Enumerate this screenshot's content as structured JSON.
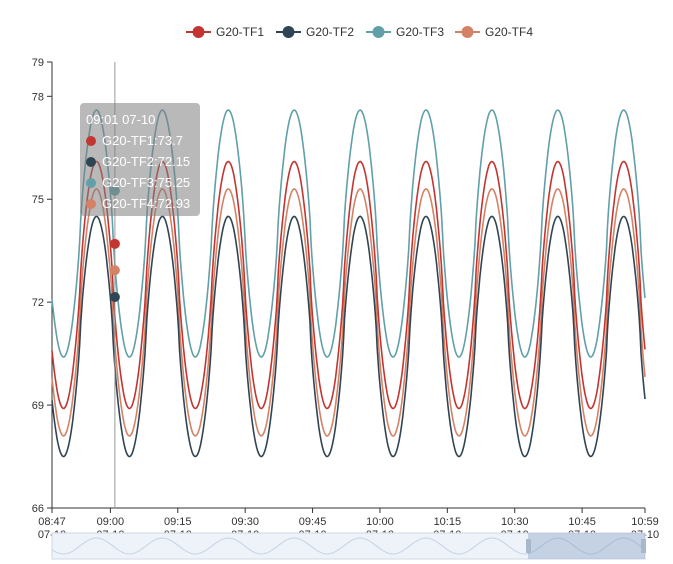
{
  "chart_data": {
    "type": "line",
    "x_start": "08:47",
    "x_end": "10:59",
    "x_ticks": [
      {
        "time": "08:47",
        "date": "07-10"
      },
      {
        "time": "09:00",
        "date": "07-10"
      },
      {
        "time": "09:15",
        "date": "07-10"
      },
      {
        "time": "09:30",
        "date": "07-10"
      },
      {
        "time": "09:45",
        "date": "07-10"
      },
      {
        "time": "10:00",
        "date": "07-10"
      },
      {
        "time": "10:15",
        "date": "07-10"
      },
      {
        "time": "10:30",
        "date": "07-10"
      },
      {
        "time": "10:45",
        "date": "07-10"
      },
      {
        "time": "10:59",
        "date": "07-10"
      }
    ],
    "y_ticks": [
      66,
      69,
      72,
      75,
      78,
      79
    ],
    "ylim": [
      66,
      79
    ],
    "period_minutes": 14.67,
    "series": [
      {
        "name": "G20-TF1",
        "color": "#c23531",
        "min": 68.9,
        "max": 76.1
      },
      {
        "name": "G20-TF2",
        "color": "#2f4554",
        "min": 67.5,
        "max": 74.5
      },
      {
        "name": "G20-TF3",
        "color": "#61a0a8",
        "min": 70.4,
        "max": 77.6
      },
      {
        "name": "G20-TF4",
        "color": "#d48265",
        "min": 68.1,
        "max": 75.3
      }
    ],
    "legend_position": "top-center",
    "grid": false,
    "tooltip": {
      "title": "09:01 07-10",
      "time": "09:01",
      "items": [
        {
          "label": "G20-TF1:73.7",
          "value": 73.7
        },
        {
          "label": "G20-TF2:72.15",
          "value": 72.15
        },
        {
          "label": "G20-TF3:75.25",
          "value": 75.25
        },
        {
          "label": "G20-TF4:72.93",
          "value": 72.93
        }
      ]
    }
  }
}
